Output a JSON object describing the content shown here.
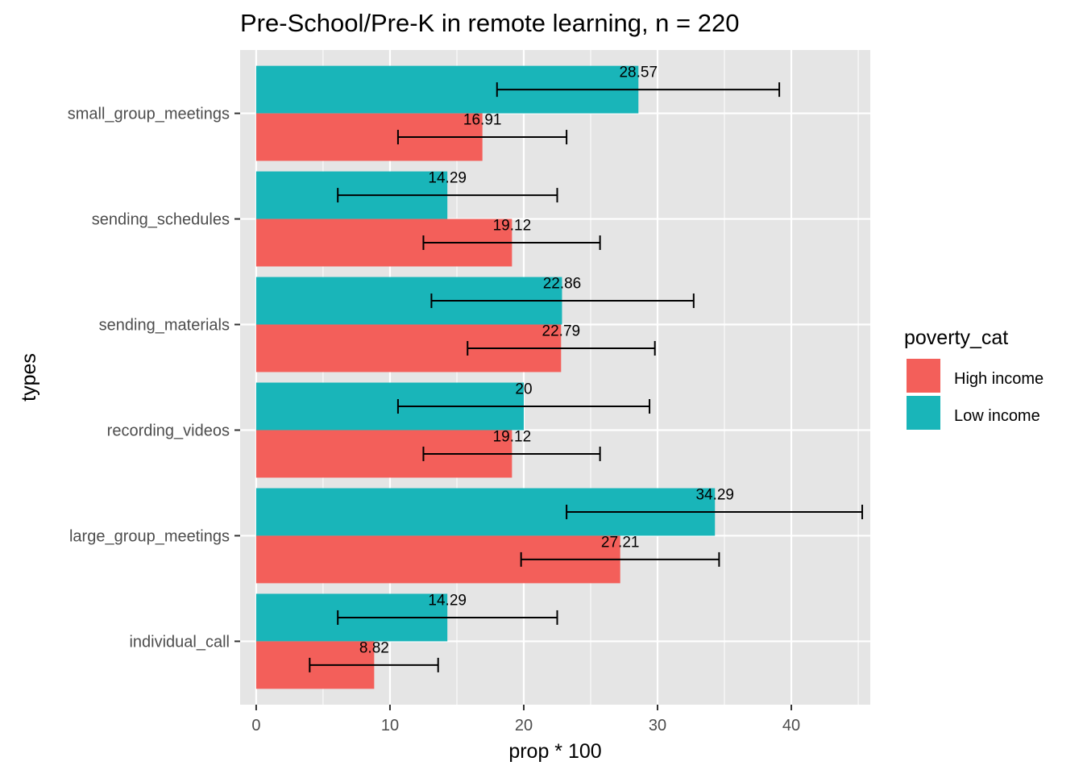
{
  "chart_data": {
    "type": "bar",
    "orientation": "horizontal",
    "title": "Pre-School/Pre-K in remote learning, n = 220",
    "xlabel": "prop * 100",
    "ylabel": "types",
    "xlim": [
      -1.2,
      45.9
    ],
    "xticks": [
      0,
      10,
      20,
      30,
      40
    ],
    "xtick_labels": [
      "0",
      "10",
      "20",
      "30",
      "40"
    ],
    "grid": true,
    "categories": [
      "small_group_meetings",
      "sending_schedules",
      "sending_materials",
      "recording_videos",
      "large_group_meetings",
      "individual_call"
    ],
    "series": [
      {
        "name": "Low income",
        "color": "#19b5b9",
        "values": [
          28.57,
          14.29,
          22.86,
          20,
          34.29,
          14.29
        ],
        "labels": [
          "28.57",
          "14.29",
          "22.86",
          "20",
          "34.29",
          "14.29"
        ],
        "error_low": [
          18.0,
          6.1,
          13.1,
          10.6,
          23.2,
          6.1
        ],
        "error_high": [
          39.1,
          22.5,
          32.7,
          29.4,
          45.3,
          22.5
        ]
      },
      {
        "name": "High income",
        "color": "#f35f5a",
        "values": [
          16.91,
          19.12,
          22.79,
          19.12,
          27.21,
          8.82
        ],
        "labels": [
          "16.91",
          "19.12",
          "22.79",
          "19.12",
          "27.21",
          "8.82"
        ],
        "error_low": [
          10.6,
          12.5,
          15.8,
          12.5,
          19.8,
          4.0
        ],
        "error_high": [
          23.2,
          25.7,
          29.8,
          25.7,
          34.6,
          13.6
        ]
      }
    ],
    "legend": {
      "title": "poverty_cat",
      "placement": "right",
      "entries": [
        "High income",
        "Low income"
      ]
    }
  }
}
